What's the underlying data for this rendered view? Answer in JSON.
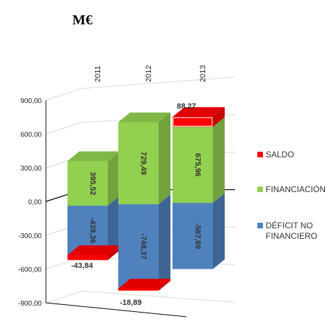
{
  "chart_data": {
    "type": "bar",
    "title": "M€",
    "categories": [
      "2011",
      "2012",
      "2013"
    ],
    "y_ticks": [
      "900,00",
      "600,00",
      "300,00",
      "0,00",
      "-300,00",
      "-600,00",
      "-900,00"
    ],
    "ylim": [
      -900,
      900
    ],
    "stacked": true,
    "projection": "3d",
    "legend_position": "right",
    "series": [
      {
        "name": "DÉFICIT NO FINANCIERO",
        "color": "#4f81bd",
        "values": [
          -439.36,
          -748.37,
          -587.69
        ],
        "labels": [
          "-439,36",
          "-748,37",
          "-587,69"
        ]
      },
      {
        "name": "FINANCIACIÓN",
        "color": "#92d050",
        "values": [
          395.52,
          729.49,
          675.96
        ],
        "labels": [
          "395,52",
          "729,49",
          "675,96"
        ]
      },
      {
        "name": "SALDO",
        "color": "#ff0000",
        "values": [
          -43.84,
          -18.89,
          88.27
        ],
        "labels": [
          "-43,84",
          "-18,89",
          "88,27"
        ]
      }
    ]
  },
  "legend": {
    "items": [
      {
        "label": "SALDO",
        "color": "#ff0000"
      },
      {
        "label": "FINANCIACIÓN",
        "color": "#92d050"
      },
      {
        "label": "DÉFICIT NO\nFINANCIERO",
        "color": "#4f81bd"
      }
    ]
  }
}
